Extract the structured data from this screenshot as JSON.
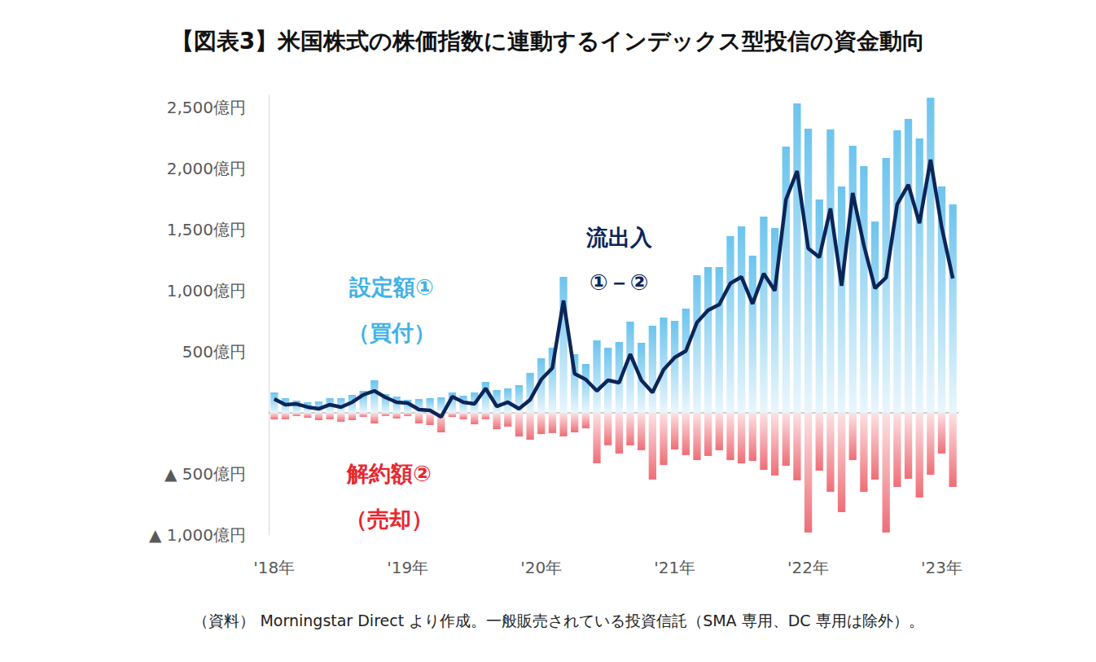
{
  "chart_data": {
    "type": "bar",
    "title": "【図表3】米国株式の株価指数に連動するインデックス型投信の資金動向",
    "source": "（資料） Morningstar Direct より作成。一般販売されている投資信託（SMA 専用、DC 専用は除外）。",
    "categories": [
      "'18年",
      null,
      null,
      null,
      null,
      null,
      null,
      null,
      null,
      null,
      null,
      null,
      "'19年",
      null,
      null,
      null,
      null,
      null,
      null,
      null,
      null,
      null,
      null,
      null,
      "'20年",
      null,
      null,
      null,
      null,
      null,
      null,
      null,
      null,
      null,
      null,
      null,
      "'21年",
      null,
      null,
      null,
      null,
      null,
      null,
      null,
      null,
      null,
      null,
      null,
      "'22年",
      null,
      null,
      null,
      null,
      null,
      null,
      null,
      null,
      null,
      null,
      null,
      "'23年",
      null
    ],
    "stacked": true,
    "grid": false,
    "series": [
      {
        "name": "設定額①",
        "type": "bar",
        "color": "#6cc4ee",
        "values": [
          167,
          120,
          100,
          87,
          93,
          120,
          120,
          147,
          180,
          267,
          153,
          133,
          107,
          113,
          120,
          127,
          167,
          140,
          167,
          253,
          187,
          200,
          227,
          327,
          447,
          533,
          1113,
          480,
          400,
          593,
          533,
          580,
          747,
          573,
          713,
          780,
          753,
          853,
          1127,
          1193,
          1193,
          1447,
          1527,
          1287,
          1607,
          1513,
          2180,
          2533,
          2327,
          1747,
          2320,
          1853,
          2187,
          2020,
          1567,
          2087,
          2313,
          2407,
          2247,
          2580,
          1853,
          1707
        ]
      },
      {
        "name": "解約額②",
        "type": "bar",
        "color": "#ee6e76",
        "values": [
          -54,
          -53,
          -27,
          -40,
          -60,
          -53,
          -73,
          -60,
          -33,
          -87,
          -26,
          -46,
          -27,
          -86,
          -100,
          -160,
          -34,
          -53,
          -94,
          -53,
          -134,
          -113,
          -194,
          -220,
          -174,
          -166,
          -193,
          -160,
          -127,
          -413,
          -266,
          -333,
          -267,
          -306,
          -546,
          -427,
          -300,
          -346,
          -387,
          -353,
          -306,
          -387,
          -414,
          -394,
          -467,
          -513,
          -433,
          -553,
          -980,
          -474,
          -647,
          -813,
          -387,
          -647,
          -547,
          -980,
          -606,
          -540,
          -694,
          -507,
          -333,
          -607
        ]
      },
      {
        "name": "流出入",
        "type": "line",
        "color": "#0b2559",
        "values": [
          113,
          67,
          73,
          47,
          33,
          67,
          47,
          87,
          147,
          180,
          127,
          87,
          80,
          27,
          20,
          -33,
          133,
          87,
          73,
          200,
          53,
          87,
          33,
          107,
          273,
          367,
          920,
          320,
          273,
          180,
          267,
          247,
          480,
          267,
          167,
          353,
          453,
          507,
          740,
          840,
          887,
          1060,
          1113,
          893,
          1140,
          1000,
          1747,
          1980,
          1347,
          1273,
          1673,
          1040,
          1800,
          1373,
          1020,
          1107,
          1707,
          1867,
          1553,
          2073,
          1520,
          1100
        ]
      }
    ],
    "annotations": [
      "（買付）",
      "（売却）",
      "①－②"
    ],
    "ylim": [
      -1000,
      2600
    ],
    "yticks": [
      {
        "value": -1000,
        "label": "▲ 1,000億円"
      },
      {
        "value": -500,
        "label": "▲ 500億円"
      },
      {
        "value": 500,
        "label": "500億円"
      },
      {
        "value": 1000,
        "label": "1,000億円"
      },
      {
        "value": 1500,
        "label": "1,500億円"
      },
      {
        "value": 2000,
        "label": "2,000億円"
      },
      {
        "value": 2500,
        "label": "2,500億円"
      }
    ]
  }
}
